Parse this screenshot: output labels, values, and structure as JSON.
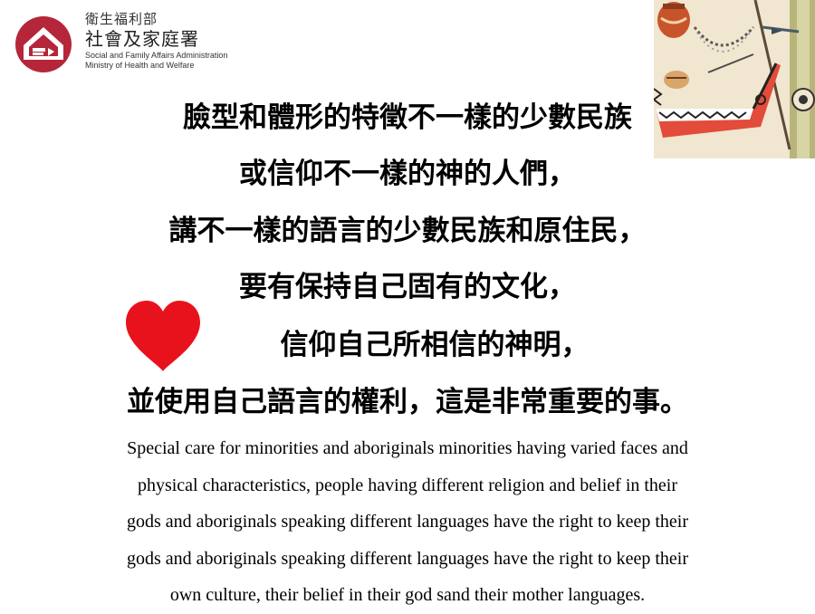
{
  "logo": {
    "org_top": "衛生福利部",
    "org_name": "社會及家庭署",
    "org_en_1": "Social and Family Affairs Administration",
    "org_en_2": "Ministry of Health and Welfare",
    "icon": "house-hand-logo-icon",
    "color": "#b5263a"
  },
  "chinese_lines": [
    "臉型和體形的特徵不一樣的少數民族",
    "或信仰不一樣的神的人們，",
    "講不一樣的語言的少數民族和原住民，",
    "要有保持自己固有的文化，",
    "信仰自己所相信的神明，",
    "並使用自己語言的權利，這是非常重要的事。"
  ],
  "english_lines": [
    "Special care for minorities and aboriginals minorities having varied faces and",
    "physical characteristics, people having different religion and belief in their",
    "gods and aboriginals speaking different languages have the right to keep their",
    "gods and aboriginals speaking different languages have the right to keep their",
    "own culture, their belief in their god sand their mother languages."
  ],
  "heart": {
    "icon": "heart-icon",
    "color": "#e8121d"
  },
  "illustration": {
    "icon": "aboriginal-art-illustration"
  }
}
